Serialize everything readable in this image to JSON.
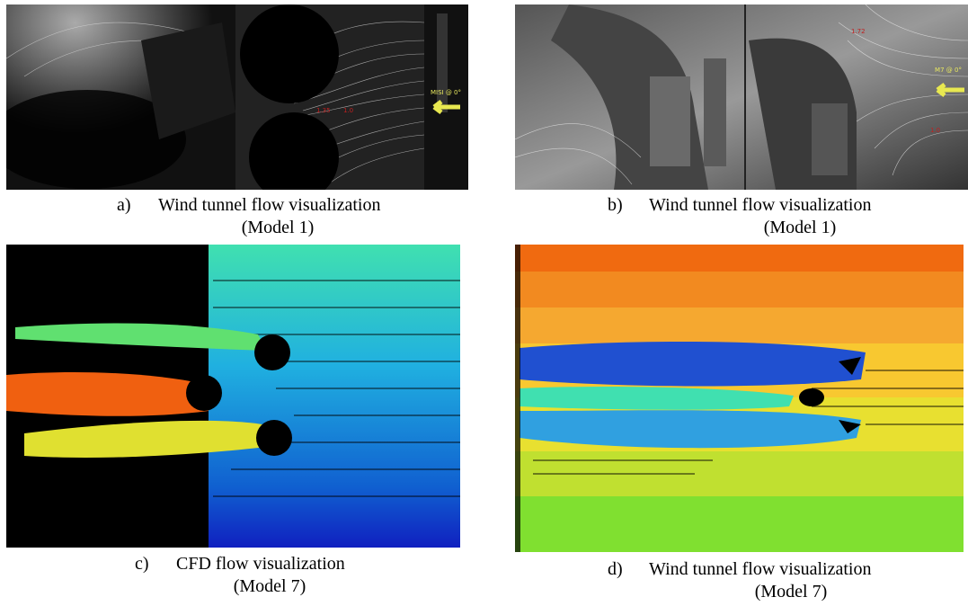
{
  "panels": [
    {
      "label": "a)",
      "caption": "Wind tunnel flow visualization",
      "model": "(Model 1)",
      "image_labels": [
        "MISI @ 0°",
        "1.35",
        "1.0"
      ]
    },
    {
      "label": "b)",
      "caption": "Wind tunnel flow visualization",
      "model": "(Model 1)",
      "image_labels": [
        "M7 @ 0°",
        "1.72",
        "1.0"
      ]
    },
    {
      "label": "c)",
      "caption": "CFD flow visualization",
      "model": "(Model 7)"
    },
    {
      "label": "d)",
      "caption": "Wind tunnel flow visualization",
      "model": "(Model 7)"
    }
  ]
}
